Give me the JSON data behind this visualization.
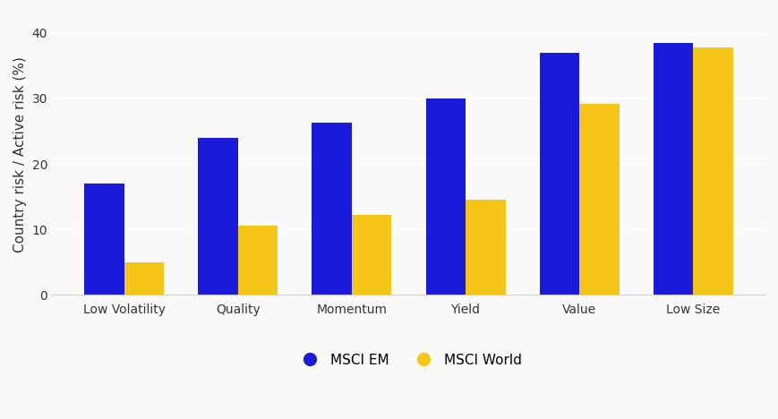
{
  "categories": [
    "Low Volatility",
    "Quality",
    "Momentum",
    "Yield",
    "Value",
    "Low Size"
  ],
  "msci_em": [
    17,
    24,
    26.3,
    30,
    37,
    38.5
  ],
  "msci_world": [
    5,
    10.5,
    12.2,
    14.5,
    29.2,
    37.8
  ],
  "em_color": "#1a1adb",
  "world_color": "#f5c518",
  "ylabel": "Country risk / Active risk (%)",
  "ylim": [
    0,
    43
  ],
  "yticks": [
    0,
    10,
    20,
    30,
    40
  ],
  "legend_em": "MSCI EM",
  "legend_world": "MSCI World",
  "bar_width": 0.35,
  "background_color": "#f9f9f9",
  "ylabel_fontsize": 11,
  "tick_fontsize": 10,
  "legend_fontsize": 11
}
